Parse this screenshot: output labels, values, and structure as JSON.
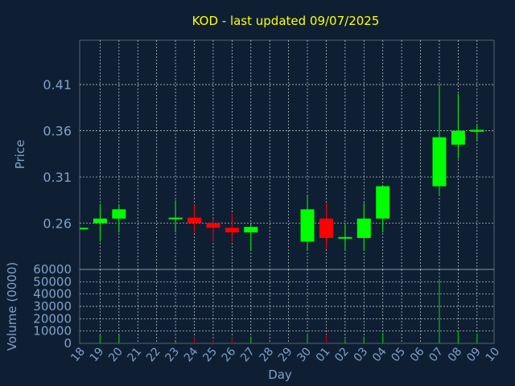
{
  "chart_data": {
    "type": "candlestick",
    "title": "KOD - last updated 09/07/2025",
    "xlabel": "Day",
    "price_panel": {
      "ylabel": "Price",
      "yticks": [
        "0.26",
        "0.31",
        "0.36",
        "0.41"
      ],
      "ylim": [
        0.21,
        0.458
      ]
    },
    "volume_panel": {
      "ylabel": "Volume (0000)",
      "yticks": [
        "0",
        "10000",
        "20000",
        "30000",
        "40000",
        "50000",
        "60000"
      ],
      "ylim": [
        0,
        60000
      ]
    },
    "x_ticks": [
      "18",
      "19",
      "20",
      "21",
      "22",
      "23",
      "24",
      "25",
      "26",
      "27",
      "28",
      "29",
      "30",
      "01",
      "02",
      "03",
      "04",
      "05",
      "06",
      "07",
      "08",
      "09",
      "10"
    ],
    "candles": [
      {
        "day": "18",
        "open": 0.255,
        "high": 0.255,
        "low": 0.254,
        "close": 0.255,
        "volume": 300
      },
      {
        "day": "19",
        "open": 0.26,
        "high": 0.281,
        "low": 0.24,
        "close": 0.265,
        "volume": 7000
      },
      {
        "day": "20",
        "open": 0.265,
        "high": 0.28,
        "low": 0.25,
        "close": 0.275,
        "volume": 6500
      },
      {
        "day": "23",
        "open": 0.265,
        "high": 0.285,
        "low": 0.25,
        "close": 0.266,
        "volume": 1500
      },
      {
        "day": "24",
        "open": 0.266,
        "high": 0.28,
        "low": 0.25,
        "close": 0.26,
        "volume": 5000
      },
      {
        "day": "25",
        "open": 0.26,
        "high": 0.265,
        "low": 0.24,
        "close": 0.255,
        "volume": 3000
      },
      {
        "day": "26",
        "open": 0.255,
        "high": 0.27,
        "low": 0.24,
        "close": 0.25,
        "volume": 5000
      },
      {
        "day": "27",
        "open": 0.25,
        "high": 0.258,
        "low": 0.23,
        "close": 0.256,
        "volume": 5500
      },
      {
        "day": "30",
        "open": 0.24,
        "high": 0.29,
        "low": 0.23,
        "close": 0.275,
        "volume": 8000
      },
      {
        "day": "01",
        "open": 0.265,
        "high": 0.282,
        "low": 0.232,
        "close": 0.244,
        "volume": 7000
      },
      {
        "day": "02",
        "open": 0.244,
        "high": 0.26,
        "low": 0.23,
        "close": 0.245,
        "volume": 3500
      },
      {
        "day": "03",
        "open": 0.244,
        "high": 0.282,
        "low": 0.23,
        "close": 0.265,
        "volume": 5500
      },
      {
        "day": "04",
        "open": 0.265,
        "high": 0.3,
        "low": 0.25,
        "close": 0.3,
        "volume": 8500
      },
      {
        "day": "07",
        "open": 0.3,
        "high": 0.41,
        "low": 0.29,
        "close": 0.353,
        "volume": 52000
      },
      {
        "day": "08",
        "open": 0.345,
        "high": 0.4,
        "low": 0.33,
        "close": 0.36,
        "volume": 10000
      },
      {
        "day": "09",
        "open": 0.359,
        "high": 0.367,
        "low": 0.35,
        "close": 0.361,
        "volume": 8000
      }
    ],
    "colors": {
      "up": "#00ff00",
      "down": "#ff0000",
      "volume_up": "#00c000",
      "volume_down": "#c00000",
      "background": "#0f1f33",
      "grid": "#ffffff",
      "axis_text": "#7fa0c8",
      "title": "#ffff00"
    },
    "grid": true
  }
}
